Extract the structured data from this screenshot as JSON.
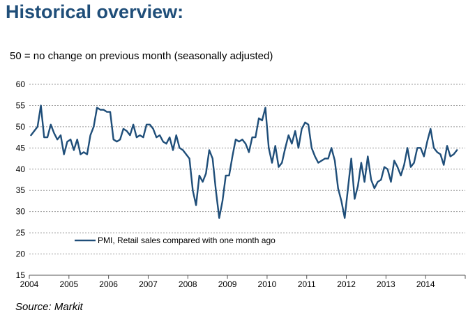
{
  "header": {
    "title": "Historical overview:",
    "subtitle": "50 = no change on previous month  (seasonally adjusted)",
    "source": "Source: Markit"
  },
  "chart_data": {
    "type": "line",
    "title": "Historical overview:",
    "xlabel": "",
    "ylabel": "",
    "ylim": [
      15,
      60
    ],
    "yticks": [
      15,
      20,
      25,
      30,
      35,
      40,
      45,
      50,
      55,
      60
    ],
    "xlim": [
      2004,
      2015
    ],
    "xticks": [
      2004,
      2005,
      2006,
      2007,
      2008,
      2009,
      2010,
      2011,
      2012,
      2013,
      2014
    ],
    "grid": "horizontal dashed",
    "legend_position": "lower-left",
    "series": [
      {
        "name": "PMI, Retail sales compared with one month ago",
        "color": "#1f4e79",
        "start": "2004-01",
        "frequency": "monthly",
        "values": [
          48.0,
          49.0,
          50.0,
          55.0,
          47.5,
          47.5,
          50.5,
          48.5,
          47.0,
          48.0,
          43.5,
          46.5,
          47.0,
          44.5,
          47.0,
          43.5,
          44.0,
          43.5,
          48.0,
          50.0,
          54.5,
          54.0,
          54.0,
          53.5,
          53.5,
          47.0,
          46.5,
          47.0,
          49.5,
          49.0,
          48.0,
          50.5,
          47.5,
          48.0,
          47.5,
          50.5,
          50.5,
          49.5,
          47.5,
          48.0,
          46.5,
          46.0,
          47.5,
          44.5,
          48.0,
          45.0,
          44.5,
          43.5,
          42.5,
          35.0,
          31.5,
          38.5,
          37.0,
          39.0,
          44.5,
          42.5,
          35.0,
          28.5,
          32.5,
          38.5,
          38.5,
          43.0,
          47.0,
          46.5,
          47.0,
          46.0,
          44.0,
          47.5,
          47.5,
          52.0,
          51.5,
          54.5,
          45.0,
          41.5,
          45.5,
          40.5,
          41.5,
          45.0,
          48.0,
          46.0,
          49.0,
          45.0,
          49.5,
          51.0,
          50.5,
          45.0,
          43.0,
          41.5,
          42.0,
          42.5,
          42.5,
          45.0,
          42.0,
          35.5,
          32.5,
          28.5,
          35.5,
          42.5,
          33.0,
          36.0,
          41.5,
          37.0,
          43.0,
          37.5,
          35.5,
          37.0,
          37.5,
          40.5,
          40.0,
          37.0,
          42.0,
          40.5,
          38.5,
          41.0,
          45.0,
          40.5,
          41.5,
          45.0,
          45.0,
          43.0,
          46.5,
          49.5,
          45.0,
          44.0,
          43.5,
          41.0,
          45.5,
          43.0,
          43.5,
          44.5
        ]
      }
    ]
  }
}
